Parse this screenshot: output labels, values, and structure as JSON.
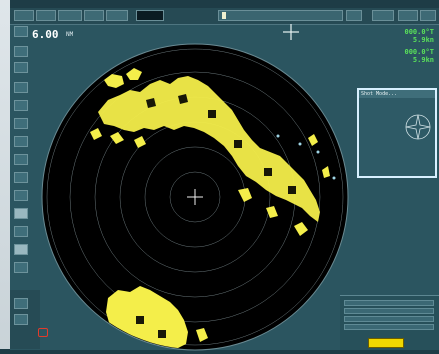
{
  "top_bar": {
    "status_value": ""
  },
  "readouts": {
    "range_value": "6.00",
    "range_unit": "NM"
  },
  "right_readouts": {
    "line1": "000.0°T",
    "line2": "5.9kn",
    "line3": "000.0°T",
    "line4": "5.9kn"
  },
  "info_panel": {
    "title": "Shot Mode..."
  },
  "colors": {
    "radar_echo": "#f4ee4a",
    "readout_green": "#59e05a",
    "panel": "#2b5560",
    "highlight_box": "#d8f0ff"
  }
}
